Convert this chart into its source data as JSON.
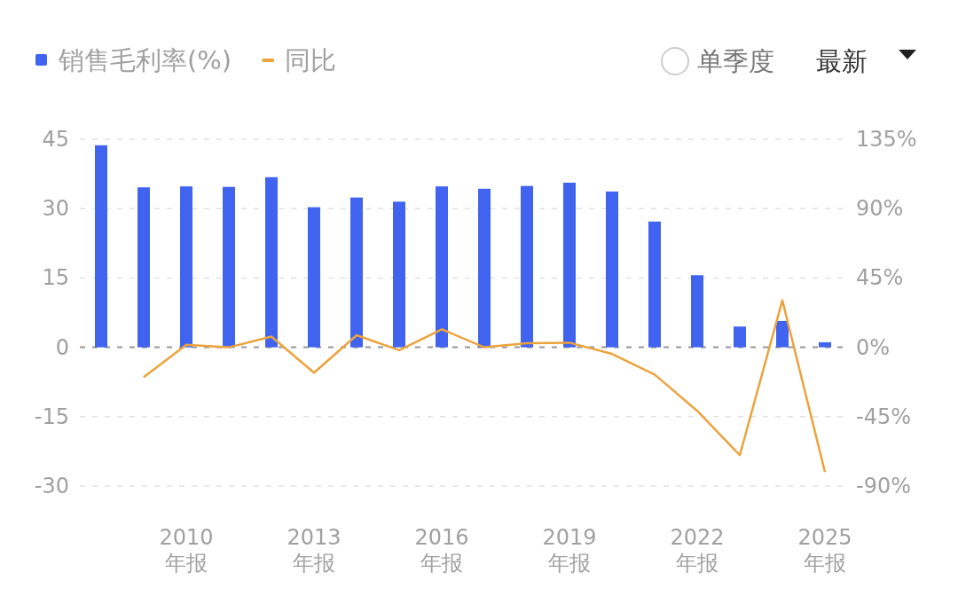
{
  "chart_data": {
    "type": "bar",
    "categories": [
      null,
      null,
      "2010\n年报",
      null,
      null,
      "2013\n年报",
      null,
      null,
      "2016\n年报",
      null,
      null,
      "2019\n年报",
      null,
      null,
      "2022\n年报",
      null,
      null,
      "2025\n年报"
    ],
    "series": [
      {
        "name": "销售毛利率(%)",
        "color": "#4064f0",
        "values": [
          43.7,
          34.6,
          34.8,
          34.7,
          36.8,
          30.3,
          32.4,
          31.5,
          34.8,
          34.3,
          34.9,
          35.6,
          33.7,
          27.2,
          15.6,
          4.5,
          5.7,
          1.1
        ]
      },
      {
        "name": "同比",
        "type": "line",
        "axis": "y2",
        "color": "#eba33c",
        "values": [
          null,
          -19.4,
          1.6,
          0,
          7.0,
          -16.5,
          7.8,
          -1.9,
          11.7,
          0,
          2.7,
          3.0,
          -4.3,
          -17.7,
          -41.2,
          -70.0,
          30.5,
          -80.9
        ]
      }
    ],
    "ylim": [
      -30,
      45
    ],
    "yticks": [
      -30,
      -15,
      0,
      15,
      30,
      45
    ],
    "y2lim": [
      -90,
      135
    ],
    "y2ticks": [
      {
        "value": -90,
        "label": "-90%"
      },
      {
        "value": -45,
        "label": "-45%"
      },
      {
        "value": 0,
        "label": "0%"
      },
      {
        "value": 45,
        "label": "45%"
      },
      {
        "value": 90,
        "label": "90%"
      },
      {
        "value": 135,
        "label": "135%"
      }
    ],
    "grid": "y",
    "legend": "top left",
    "ref_lines": [
      {
        "axis": "y",
        "value": 0,
        "color": "#999999",
        "line_style": "dashed"
      }
    ],
    "annotations": [
      "单季度",
      "最新"
    ]
  }
}
